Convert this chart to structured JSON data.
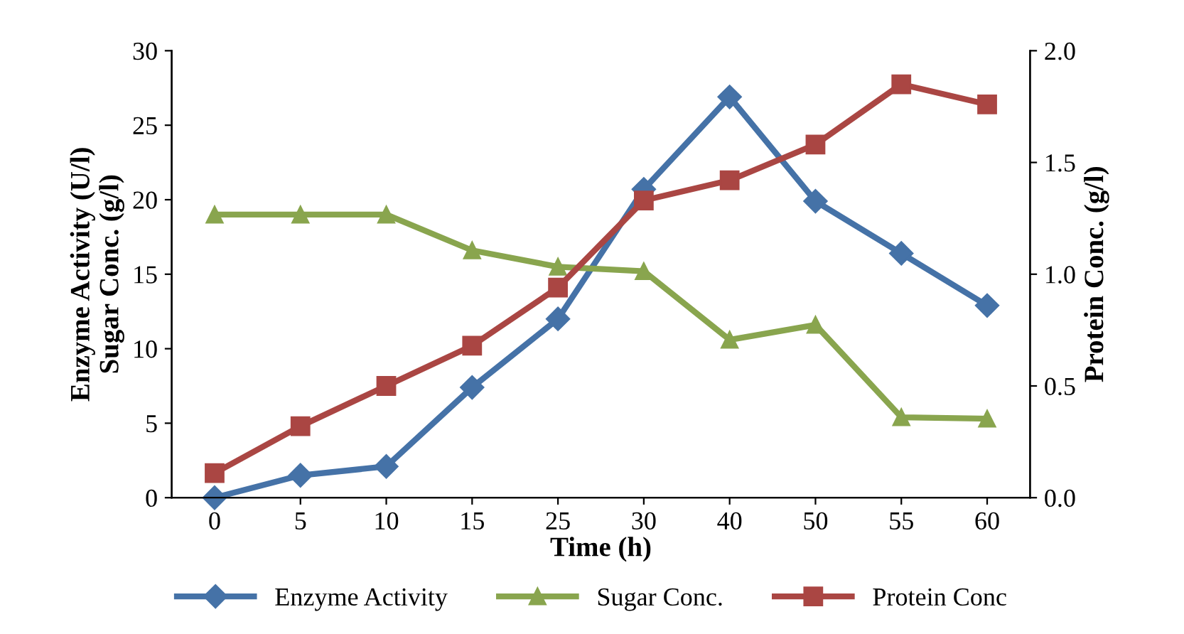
{
  "chart_data": {
    "type": "line",
    "xlabel": "Time (h)",
    "ylabel": "Enzyme Activity (U/l)\nSugar Conc. (g/l)",
    "y2label": "Protein Conc. (g/l)",
    "categories": [
      "0",
      "5",
      "10",
      "15",
      "25",
      "30",
      "40",
      "50",
      "55",
      "60"
    ],
    "series": [
      {
        "name": "Enzyme Activity",
        "color": "#4572a7",
        "marker": "diamond",
        "values": [
          0,
          1.5,
          2.1,
          7.4,
          12,
          20.7,
          26.9,
          19.9,
          16.4,
          12.9
        ]
      },
      {
        "name": "Sugar Conc.",
        "color": "#89a54e",
        "marker": "triangle",
        "values": [
          19.0,
          19.0,
          19.0,
          16.6,
          15.5,
          15.2,
          10.6,
          11.6,
          5.4,
          5.3
        ]
      },
      {
        "name": "Protein Conc",
        "color": "#aa4643",
        "marker": "square",
        "axis": "y2",
        "values": [
          0.11,
          0.32,
          0.5,
          0.68,
          0.94,
          1.33,
          1.42,
          1.58,
          1.85,
          1.76
        ]
      }
    ],
    "ylim": [
      0,
      30
    ],
    "yticks": [
      0,
      5,
      10,
      15,
      20,
      25,
      30
    ],
    "y2lim": [
      0,
      2.0
    ],
    "y2ticks": [
      {
        "value": 0,
        "label": "0.0"
      },
      {
        "value": 0.5,
        "label": "0.5"
      },
      {
        "value": 1.0,
        "label": "1.0"
      },
      {
        "value": 1.5,
        "label": "1.5"
      },
      {
        "value": 2.0,
        "label": "2.0"
      }
    ],
    "grid": false,
    "legend": "bottom",
    "line_style": "solid"
  }
}
